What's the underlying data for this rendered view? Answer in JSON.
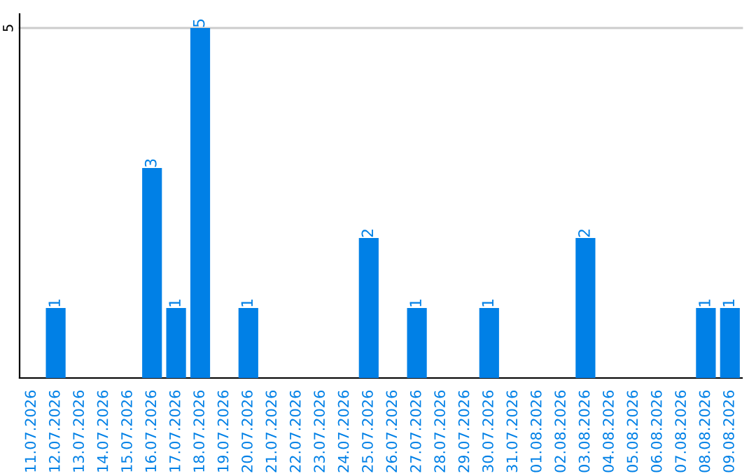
{
  "chart_data": {
    "type": "bar",
    "categories": [
      "11.07.2026",
      "12.07.2026",
      "13.07.2026",
      "14.07.2026",
      "15.07.2026",
      "16.07.2026",
      "17.07.2026",
      "18.07.2026",
      "19.07.2026",
      "20.07.2026",
      "21.07.2026",
      "22.07.2026",
      "23.07.2026",
      "24.07.2026",
      "25.07.2026",
      "26.07.2026",
      "27.07.2026",
      "28.07.2026",
      "29.07.2026",
      "30.07.2026",
      "31.07.2026",
      "01.08.2026",
      "02.08.2026",
      "03.08.2026",
      "04.08.2026",
      "05.08.2026",
      "06.08.2026",
      "07.08.2026",
      "08.08.2026",
      "09.08.2026"
    ],
    "values": [
      0,
      1,
      0,
      0,
      0,
      3,
      1,
      5,
      0,
      1,
      0,
      0,
      0,
      0,
      2,
      0,
      1,
      0,
      0,
      1,
      0,
      0,
      0,
      2,
      0,
      0,
      0,
      0,
      1,
      1
    ],
    "value_labels": [
      null,
      "1",
      null,
      null,
      null,
      "3",
      "1",
      "5",
      null,
      "1",
      null,
      null,
      null,
      null,
      "2",
      null,
      "1",
      null,
      null,
      "1",
      null,
      null,
      null,
      "2",
      null,
      null,
      null,
      null,
      "1",
      "1"
    ],
    "color": "#0080e6",
    "ylim": [
      0,
      5.2
    ],
    "yticks": [
      5
    ],
    "grid": "y"
  }
}
